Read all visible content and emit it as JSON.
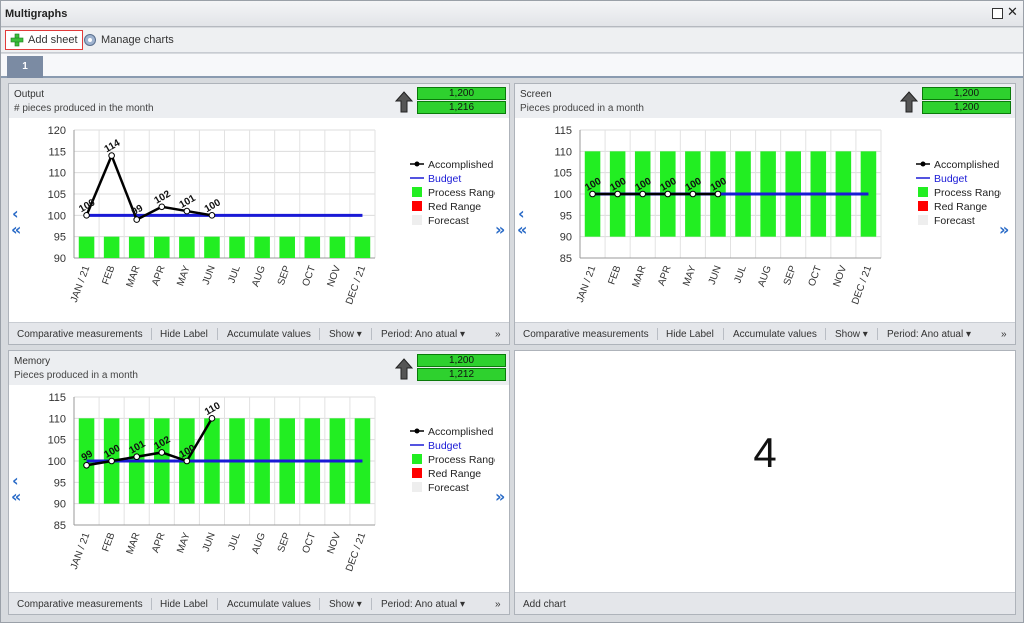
{
  "window": {
    "title": "Multigraphs"
  },
  "toolbar": {
    "add_sheet": "Add sheet",
    "manage_charts": "Manage charts"
  },
  "tabs": [
    {
      "label": "1"
    }
  ],
  "common": {
    "legend": [
      "Accomplished",
      "Budget",
      "Process Range",
      "Red Range",
      "Forecast"
    ],
    "months": [
      "JAN / 21",
      "FEB",
      "MAR",
      "APR",
      "MAY",
      "JUN",
      "JUL",
      "AUG",
      "SEP",
      "OCT",
      "NOV",
      "DEC / 21"
    ],
    "footer": {
      "comparative": "Comparative measurements",
      "hide_label": "Hide Label",
      "accumulate": "Accumulate values",
      "show": "Show",
      "period": "Period: Ano atual",
      "more": "»"
    },
    "colors": {
      "process": "#22ee22",
      "budget": "#1a1ad6",
      "accomplished": "#000000",
      "red": "#ff0000",
      "forecast": "#eeeeee",
      "indicator_green": "#2ed12e"
    }
  },
  "panels": [
    {
      "title": "Output",
      "subtitle": "# pieces produced in the month",
      "indicators": [
        "1,200",
        "1,216"
      ]
    },
    {
      "title": "Screen",
      "subtitle": "Pieces produced in a month",
      "indicators": [
        "1,200",
        "1,200"
      ]
    },
    {
      "title": "Memory",
      "subtitle": "Pieces produced in a month",
      "indicators": [
        "1,200",
        "1,212"
      ]
    },
    {
      "big_number": "4",
      "footer_label": "Add chart"
    }
  ],
  "chart_data": [
    {
      "type": "bar",
      "title": "Output",
      "ylim": [
        90,
        120
      ],
      "yticks": [
        90,
        95,
        100,
        105,
        110,
        115,
        120
      ],
      "categories": [
        "JAN / 21",
        "FEB",
        "MAR",
        "APR",
        "MAY",
        "JUN",
        "JUL",
        "AUG",
        "SEP",
        "OCT",
        "NOV",
        "DEC / 21"
      ],
      "series": [
        {
          "name": "Process Range",
          "kind": "bar",
          "low": 90,
          "high": 95
        },
        {
          "name": "Budget",
          "kind": "line",
          "values": [
            100,
            100,
            100,
            100,
            100,
            100,
            100,
            100,
            100,
            100,
            100,
            100
          ]
        },
        {
          "name": "Accomplished",
          "kind": "line",
          "values": [
            100,
            114,
            99,
            102,
            101,
            100,
            null,
            null,
            null,
            null,
            null,
            null
          ]
        }
      ],
      "labels": [
        "100",
        "114",
        "99",
        "102",
        "101",
        "100"
      ]
    },
    {
      "type": "bar",
      "title": "Screen",
      "ylim": [
        85,
        115
      ],
      "yticks": [
        85,
        90,
        95,
        100,
        105,
        110,
        115
      ],
      "categories": [
        "JAN / 21",
        "FEB",
        "MAR",
        "APR",
        "MAY",
        "JUN",
        "JUL",
        "AUG",
        "SEP",
        "OCT",
        "NOV",
        "DEC / 21"
      ],
      "series": [
        {
          "name": "Process Range",
          "kind": "bar",
          "low": 90,
          "high": 110
        },
        {
          "name": "Budget",
          "kind": "line",
          "values": [
            100,
            100,
            100,
            100,
            100,
            100,
            100,
            100,
            100,
            100,
            100,
            100
          ]
        },
        {
          "name": "Accomplished",
          "kind": "line",
          "values": [
            100,
            100,
            100,
            100,
            100,
            100,
            null,
            null,
            null,
            null,
            null,
            null
          ]
        }
      ],
      "labels": [
        "100",
        "100",
        "100",
        "100",
        "100",
        "100"
      ]
    },
    {
      "type": "bar",
      "title": "Memory",
      "ylim": [
        85,
        115
      ],
      "yticks": [
        85,
        90,
        95,
        100,
        105,
        110,
        115
      ],
      "categories": [
        "JAN / 21",
        "FEB",
        "MAR",
        "APR",
        "MAY",
        "JUN",
        "JUL",
        "AUG",
        "SEP",
        "OCT",
        "NOV",
        "DEC / 21"
      ],
      "series": [
        {
          "name": "Process Range",
          "kind": "bar",
          "low": 90,
          "high": 110
        },
        {
          "name": "Budget",
          "kind": "line",
          "values": [
            100,
            100,
            100,
            100,
            100,
            100,
            100,
            100,
            100,
            100,
            100,
            100
          ]
        },
        {
          "name": "Accomplished",
          "kind": "line",
          "values": [
            99,
            100,
            101,
            102,
            100,
            110,
            null,
            null,
            null,
            null,
            null,
            null
          ]
        }
      ],
      "labels": [
        "99",
        "100",
        "101",
        "102",
        "100",
        "110"
      ]
    }
  ]
}
